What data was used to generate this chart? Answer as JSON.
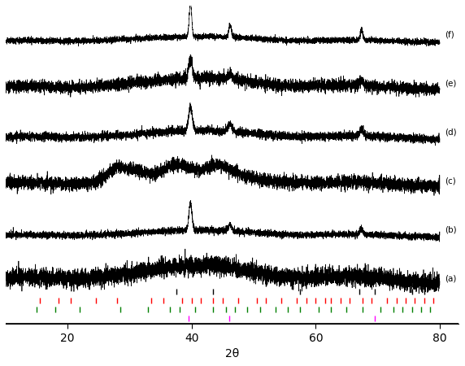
{
  "xlim": [
    10,
    80
  ],
  "xlabel": "2θ",
  "labels": [
    "(a)",
    "(b)",
    "(c)",
    "(d)",
    "(e)",
    "(f)"
  ],
  "background_color": "#ffffff",
  "line_color": "#000000",
  "tick_color_black": "#000000",
  "tick_color_red": "#ff0000",
  "tick_color_green": "#008000",
  "tick_color_magenta": "#ff00ff",
  "black_ticks": [
    37.5,
    43.5,
    57.5,
    67.0,
    69.5,
    75.5,
    77.5
  ],
  "red_ticks": [
    15.5,
    18.5,
    20.5,
    24.5,
    28.0,
    33.5,
    35.5,
    38.5,
    40.0,
    41.5,
    43.5,
    45.0,
    47.5,
    50.5,
    52.0,
    54.5,
    57.0,
    58.5,
    60.0,
    61.5,
    62.5,
    64.0,
    65.5,
    67.5,
    69.0,
    71.5,
    73.0,
    74.5,
    76.0,
    77.5,
    79.0
  ],
  "green_ticks": [
    15.0,
    18.0,
    22.0,
    28.5,
    33.0,
    36.5,
    38.0,
    40.5,
    43.5,
    45.5,
    47.0,
    49.0,
    51.0,
    53.5,
    55.5,
    57.5,
    60.5,
    62.5,
    65.0,
    67.5,
    70.5,
    72.5,
    74.0,
    75.5,
    77.0,
    78.5
  ],
  "magenta_ticks": [
    39.5,
    46.0,
    69.5
  ],
  "noise_scale": 0.06,
  "seed": 42
}
